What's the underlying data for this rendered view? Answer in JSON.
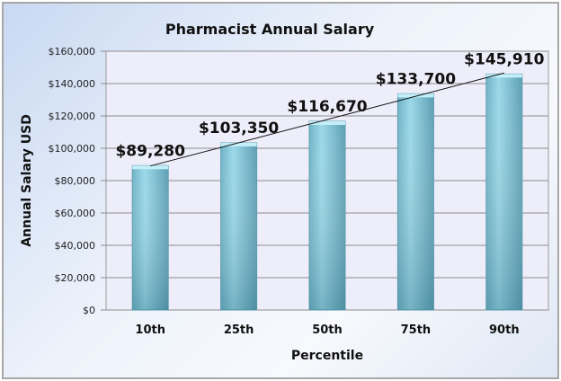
{
  "chart_data": {
    "type": "bar",
    "title": "Pharmacist Annual Salary",
    "xlabel": "Percentile",
    "ylabel": "Annual Salary USD",
    "categories": [
      "10th",
      "25th",
      "50th",
      "75th",
      "90th"
    ],
    "values": [
      89280,
      103350,
      116670,
      133700,
      145910
    ],
    "data_labels": [
      "$89,280",
      "$103,350",
      "$116,670",
      "$133,700",
      "$145,910"
    ],
    "ylim": [
      0,
      160000
    ],
    "yticks": [
      0,
      20000,
      40000,
      60000,
      80000,
      100000,
      120000,
      140000,
      160000
    ],
    "ytick_labels": [
      "$0",
      "$20,000",
      "$40,000",
      "$60,000",
      "$80,000",
      "$100,000",
      "$120,000",
      "$140,000",
      "$160,000"
    ],
    "grid": true,
    "trendline": "linear",
    "legend": "none",
    "colors": {
      "bar": "#8ccfe0",
      "bar_dark": "#5a9cb0",
      "plot_bg": "#eeeefa",
      "grid": "#8c8c8c"
    }
  }
}
